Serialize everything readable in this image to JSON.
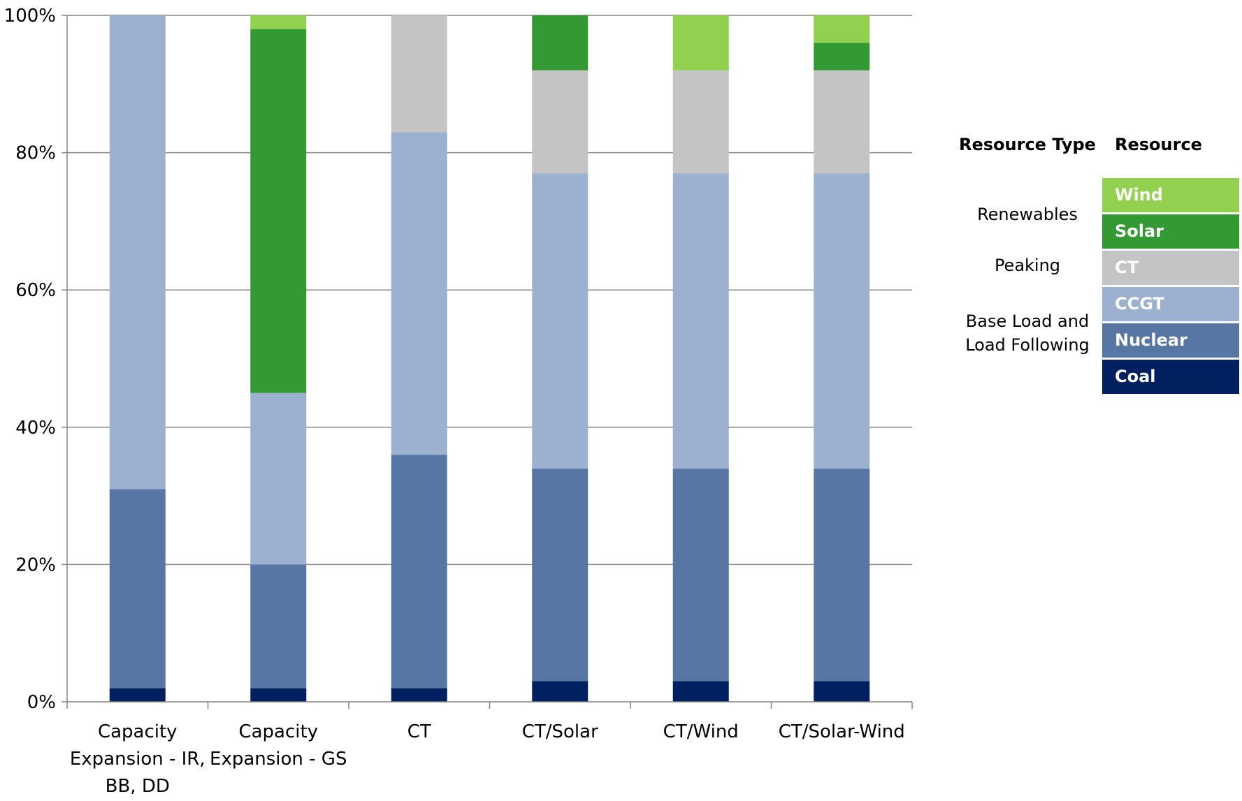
{
  "chart_data": {
    "type": "bar",
    "stacked": true,
    "percent": true,
    "categories": [
      [
        "Capacity",
        "Expansion - IR,",
        "BB, DD"
      ],
      [
        "Capacity",
        "Expansion - GS"
      ],
      [
        "CT"
      ],
      [
        "CT/Solar"
      ],
      [
        "CT/Wind"
      ],
      [
        "CT/Solar-Wind"
      ]
    ],
    "series": [
      {
        "name": "Coal",
        "color": "#002060",
        "values": [
          2,
          2,
          2,
          3,
          3,
          3
        ]
      },
      {
        "name": "Nuclear",
        "color": "#5876a4",
        "values": [
          29,
          18,
          34,
          31,
          31,
          31
        ]
      },
      {
        "name": "CCGT",
        "color": "#9cb0d0",
        "values": [
          69,
          25,
          47,
          43,
          43,
          43
        ]
      },
      {
        "name": "CT",
        "color": "#c4c4c4",
        "values": [
          0,
          0,
          17,
          15,
          15,
          15
        ]
      },
      {
        "name": "Solar",
        "color": "#339933",
        "values": [
          0,
          53,
          0,
          8,
          0,
          4
        ]
      },
      {
        "name": "Wind",
        "color": "#92d050",
        "values": [
          0,
          2,
          0,
          0,
          8,
          4
        ]
      }
    ],
    "y_ticks": [
      "0%",
      "20%",
      "40%",
      "60%",
      "80%",
      "100%"
    ],
    "ylim": [
      0,
      100
    ],
    "grid": true,
    "legend": {
      "position": "right",
      "header_type": "Resource Type",
      "header_resource": "Resource",
      "groups": [
        {
          "label_lines": [
            "Renewables"
          ],
          "members": [
            "Wind",
            "Solar"
          ]
        },
        {
          "label_lines": [
            "Peaking"
          ],
          "members": [
            "CT"
          ]
        },
        {
          "label_lines": [
            "Base Load and",
            "Load Following"
          ],
          "members": [
            "CCGT",
            "Nuclear",
            "Coal"
          ]
        }
      ],
      "entries": [
        {
          "name": "Wind",
          "color": "#92d050",
          "text_color": "#ffffff"
        },
        {
          "name": "Solar",
          "color": "#339933",
          "text_color": "#ffffff"
        },
        {
          "name": "CT",
          "color": "#c4c4c4",
          "text_color": "#ffffff"
        },
        {
          "name": "CCGT",
          "color": "#9cb0d0",
          "text_color": "#ffffff"
        },
        {
          "name": "Nuclear",
          "color": "#5876a4",
          "text_color": "#ffffff"
        },
        {
          "name": "Coal",
          "color": "#002060",
          "text_color": "#ffffff"
        }
      ]
    }
  }
}
